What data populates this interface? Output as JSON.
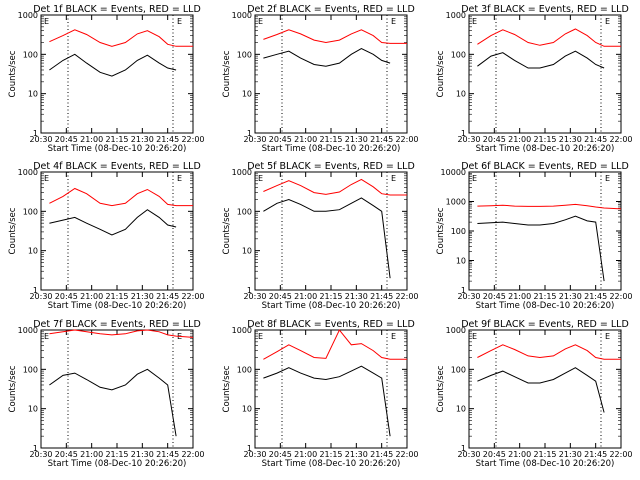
{
  "common": {
    "ylabel": "Counts/sec",
    "xlabel": "Start Time (08-Dec-10 20:26:20)",
    "xticks": [
      "20:30",
      "20:45",
      "21:00",
      "21:15",
      "21:30",
      "21:45",
      "22:00"
    ],
    "yticks": [
      "1",
      "10",
      "100",
      "1000"
    ],
    "yticks_top": [
      "1",
      "10",
      "100",
      "1000",
      "10000"
    ],
    "markers": [
      "E",
      "E"
    ],
    "colors": {
      "events": "#000000",
      "lld": "#ff0000",
      "axes": "#000000"
    }
  },
  "chart_data": [
    {
      "type": "line",
      "log_y": true,
      "grid": false,
      "ylim": [
        1,
        1000
      ],
      "title": "Det 1f BLACK = Events, RED = LLD",
      "xlabel": "Start Time (08-Dec-10 20:26:20)",
      "ylabel": "Counts/sec",
      "x": [
        "20:35",
        "20:43",
        "20:50",
        "20:57",
        "21:05",
        "21:12",
        "21:20",
        "21:27",
        "21:33",
        "21:40",
        "21:45",
        "21:50",
        "22:00"
      ],
      "series": [
        {
          "name": "LLD",
          "values": [
            210,
            300,
            420,
            320,
            200,
            160,
            200,
            330,
            400,
            280,
            180,
            160,
            160
          ]
        },
        {
          "name": "Events",
          "values": [
            40,
            70,
            100,
            60,
            35,
            28,
            40,
            70,
            95,
            60,
            45,
            40,
            null
          ]
        }
      ]
    },
    {
      "type": "line",
      "log_y": true,
      "grid": false,
      "ylim": [
        1,
        1000
      ],
      "title": "Det 2f BLACK = Events, RED = LLD",
      "xlabel": "Start Time (08-Dec-10 20:26:20)",
      "ylabel": "Counts/sec",
      "x": [
        "20:35",
        "20:43",
        "20:50",
        "20:57",
        "21:05",
        "21:12",
        "21:20",
        "21:27",
        "21:33",
        "21:40",
        "21:45",
        "21:50",
        "22:00"
      ],
      "series": [
        {
          "name": "LLD",
          "values": [
            240,
            320,
            420,
            330,
            230,
            200,
            230,
            330,
            420,
            300,
            200,
            190,
            190
          ]
        },
        {
          "name": "Events",
          "values": [
            80,
            100,
            120,
            80,
            55,
            50,
            60,
            100,
            140,
            100,
            70,
            60,
            null
          ]
        }
      ]
    },
    {
      "type": "line",
      "log_y": true,
      "grid": false,
      "ylim": [
        1,
        1000
      ],
      "title": "Det 3f BLACK = Events, RED = LLD",
      "xlabel": "Start Time (08-Dec-10 20:26:20)",
      "ylabel": "Counts/sec",
      "x": [
        "20:35",
        "20:43",
        "20:50",
        "20:57",
        "21:05",
        "21:12",
        "21:20",
        "21:27",
        "21:33",
        "21:40",
        "21:45",
        "21:50",
        "22:00"
      ],
      "series": [
        {
          "name": "LLD",
          "values": [
            180,
            300,
            420,
            320,
            200,
            170,
            200,
            330,
            440,
            300,
            200,
            160,
            160
          ]
        },
        {
          "name": "Events",
          "values": [
            50,
            90,
            110,
            70,
            45,
            45,
            55,
            90,
            120,
            80,
            55,
            45,
            null
          ]
        }
      ]
    },
    {
      "type": "line",
      "log_y": true,
      "grid": false,
      "ylim": [
        1,
        1000
      ],
      "title": "Det 4f BLACK = Events, RED = LLD",
      "xlabel": "Start Time (08-Dec-10 20:26:20)",
      "ylabel": "Counts/sec",
      "x": [
        "20:35",
        "20:43",
        "20:50",
        "20:57",
        "21:05",
        "21:12",
        "21:20",
        "21:27",
        "21:33",
        "21:40",
        "21:45",
        "21:50",
        "22:00"
      ],
      "series": [
        {
          "name": "LLD",
          "values": [
            160,
            240,
            380,
            280,
            160,
            140,
            160,
            280,
            360,
            240,
            150,
            140,
            140
          ]
        },
        {
          "name": "Events",
          "values": [
            50,
            60,
            70,
            50,
            35,
            25,
            35,
            70,
            110,
            70,
            45,
            40,
            null
          ]
        }
      ]
    },
    {
      "type": "line",
      "log_y": true,
      "grid": false,
      "ylim": [
        1,
        1000
      ],
      "title": "Det 5f BLACK = Events, RED = LLD",
      "xlabel": "Start Time (08-Dec-10 20:26:20)",
      "ylabel": "Counts/sec",
      "x": [
        "20:35",
        "20:43",
        "20:50",
        "20:57",
        "21:05",
        "21:12",
        "21:20",
        "21:27",
        "21:33",
        "21:40",
        "21:45",
        "21:50",
        "22:00"
      ],
      "series": [
        {
          "name": "LLD",
          "values": [
            320,
            450,
            600,
            450,
            300,
            270,
            310,
            480,
            650,
            420,
            280,
            260,
            260
          ]
        },
        {
          "name": "Events",
          "values": [
            100,
            160,
            200,
            150,
            100,
            100,
            110,
            160,
            220,
            140,
            100,
            2,
            null
          ]
        }
      ]
    },
    {
      "type": "line",
      "log_y": true,
      "grid": false,
      "ylim": [
        1,
        10000
      ],
      "title": "Det 6f BLACK = Events, RED = LLD",
      "xlabel": "Start Time (08-Dec-10 20:26:20)",
      "ylabel": "Counts/sec",
      "x": [
        "20:35",
        "20:43",
        "20:50",
        "20:57",
        "21:05",
        "21:12",
        "21:20",
        "21:27",
        "21:33",
        "21:40",
        "21:45",
        "21:50",
        "22:00"
      ],
      "series": [
        {
          "name": "LLD",
          "values": [
            700,
            720,
            750,
            700,
            680,
            680,
            700,
            750,
            800,
            720,
            650,
            600,
            560
          ]
        },
        {
          "name": "Events",
          "values": [
            180,
            190,
            200,
            180,
            160,
            160,
            180,
            240,
            320,
            220,
            200,
            2,
            null
          ]
        }
      ]
    },
    {
      "type": "line",
      "log_y": true,
      "grid": false,
      "ylim": [
        1,
        1000
      ],
      "title": "Det 7f BLACK = Events, RED = LLD",
      "xlabel": "Start Time (08-Dec-10 20:26:20)",
      "ylabel": "Counts/sec",
      "x": [
        "20:35",
        "20:43",
        "20:50",
        "20:57",
        "21:05",
        "21:12",
        "21:20",
        "21:27",
        "21:33",
        "21:40",
        "21:45",
        "21:50",
        "22:00"
      ],
      "series": [
        {
          "name": "LLD",
          "values": [
            800,
            900,
            1000,
            900,
            800,
            750,
            800,
            950,
            1000,
            900,
            750,
            700,
            650
          ]
        },
        {
          "name": "Events",
          "values": [
            40,
            70,
            80,
            55,
            35,
            30,
            40,
            75,
            100,
            60,
            40,
            2,
            null
          ]
        }
      ]
    },
    {
      "type": "line",
      "log_y": true,
      "grid": false,
      "ylim": [
        1,
        1000
      ],
      "title": "Det 8f BLACK = Events, RED = LLD",
      "xlabel": "Start Time (08-Dec-10 20:26:20)",
      "ylabel": "Counts/sec",
      "x": [
        "20:35",
        "20:43",
        "20:50",
        "20:57",
        "21:05",
        "21:12",
        "21:20",
        "21:27",
        "21:33",
        "21:40",
        "21:45",
        "21:50",
        "22:00"
      ],
      "series": [
        {
          "name": "LLD",
          "values": [
            180,
            280,
            420,
            300,
            200,
            190,
            1000,
            420,
            450,
            300,
            200,
            180,
            180
          ]
        },
        {
          "name": "Events",
          "values": [
            60,
            80,
            110,
            80,
            60,
            55,
            65,
            90,
            120,
            80,
            60,
            2,
            null
          ]
        }
      ]
    },
    {
      "type": "line",
      "log_y": true,
      "grid": false,
      "ylim": [
        1,
        1000
      ],
      "title": "Det 9f BLACK = Events, RED = LLD",
      "xlabel": "Start Time (08-Dec-10 20:26:20)",
      "ylabel": "Counts/sec",
      "x": [
        "20:35",
        "20:43",
        "20:50",
        "20:57",
        "21:05",
        "21:12",
        "21:20",
        "21:27",
        "21:33",
        "21:40",
        "21:45",
        "21:50",
        "22:00"
      ],
      "series": [
        {
          "name": "LLD",
          "values": [
            200,
            300,
            420,
            320,
            220,
            200,
            220,
            330,
            420,
            300,
            200,
            180,
            180
          ]
        },
        {
          "name": "Events",
          "values": [
            50,
            70,
            90,
            65,
            45,
            45,
            55,
            80,
            110,
            70,
            50,
            8,
            null
          ]
        }
      ]
    }
  ]
}
